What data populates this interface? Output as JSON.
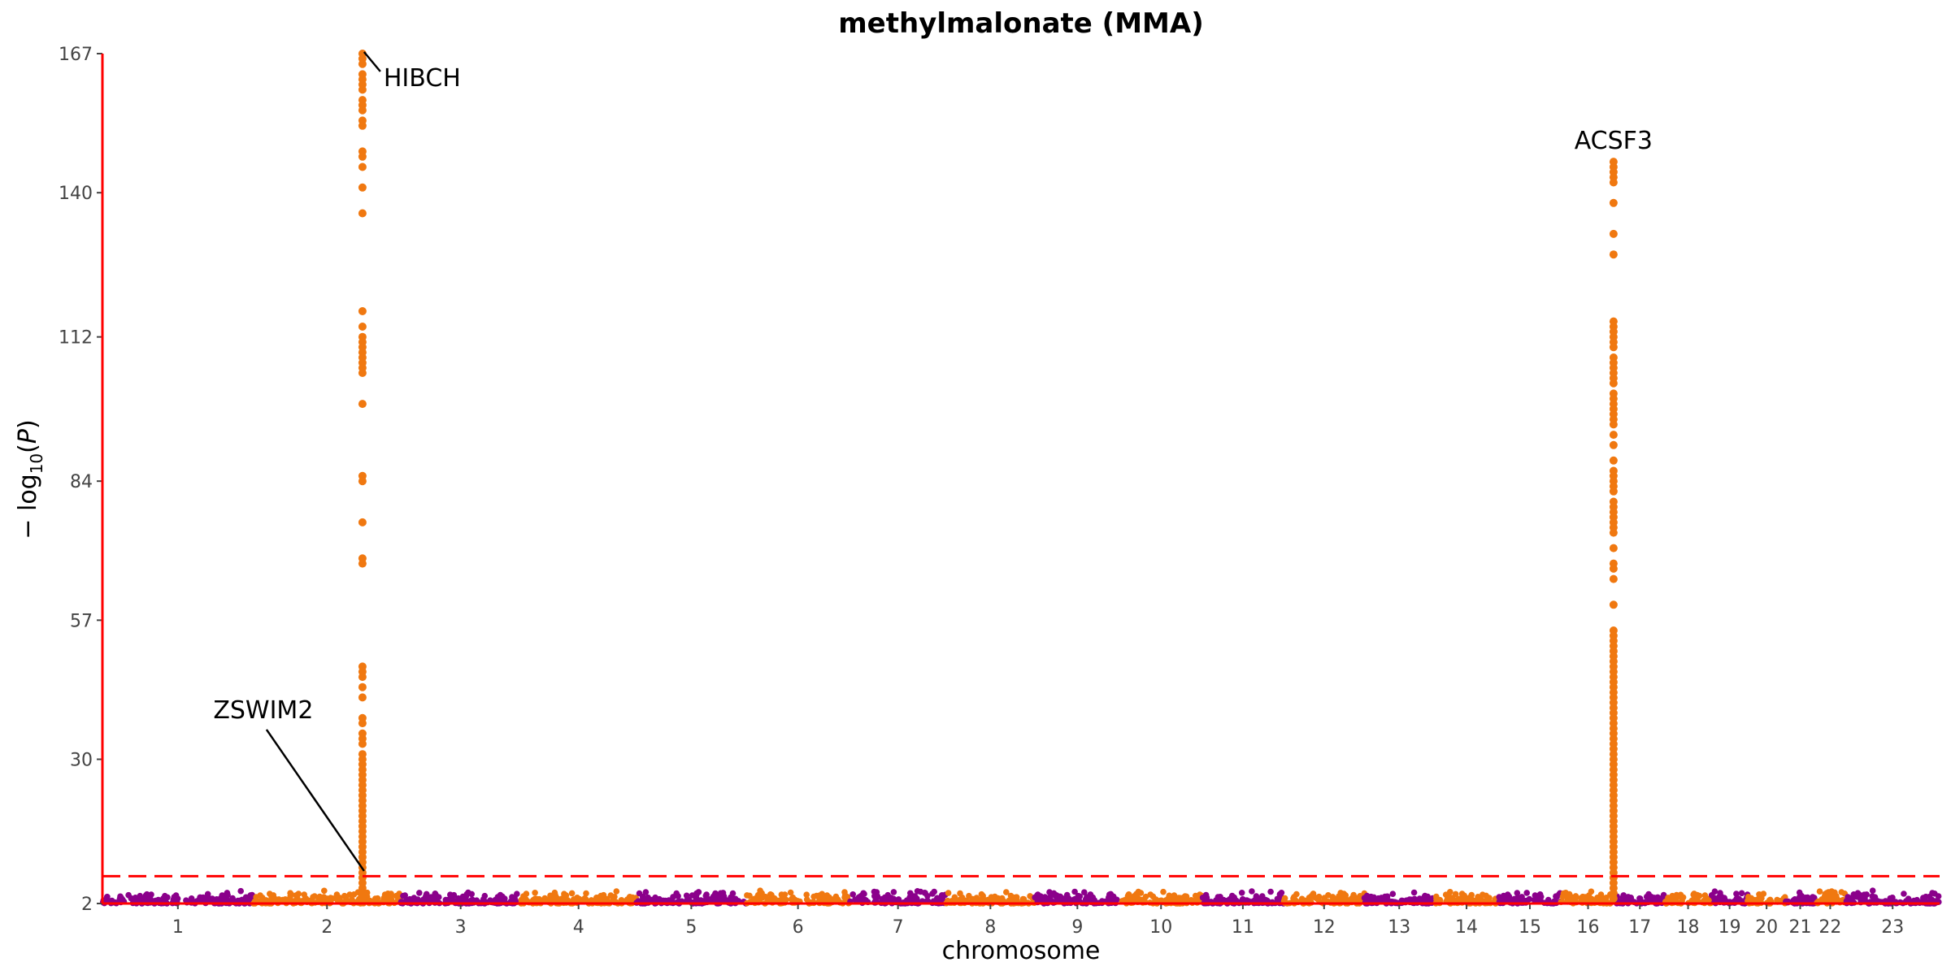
{
  "chart_data": {
    "type": "scatter",
    "title": "methylmalonate (MMA)",
    "xlabel": "chromosome",
    "ylabel": "− log10(P)",
    "ylim": [
      2,
      167
    ],
    "y_ticks": [
      2,
      30,
      57,
      84,
      112,
      140,
      167
    ],
    "significance_threshold": 7.3,
    "colors": {
      "odd": "#8b008b",
      "even": "#f07810",
      "axes": "#ff0000",
      "threshold": "#ff0000"
    },
    "chromosomes": [
      {
        "label": "1",
        "length": 249
      },
      {
        "label": "2",
        "length": 243
      },
      {
        "label": "3",
        "length": 198
      },
      {
        "label": "4",
        "length": 191
      },
      {
        "label": "5",
        "length": 181
      },
      {
        "label": "6",
        "length": 171
      },
      {
        "label": "7",
        "length": 159
      },
      {
        "label": "8",
        "length": 146
      },
      {
        "label": "9",
        "length": 141
      },
      {
        "label": "10",
        "length": 135
      },
      {
        "label": "11",
        "length": 135
      },
      {
        "label": "12",
        "length": 133
      },
      {
        "label": "13",
        "length": 115
      },
      {
        "label": "14",
        "length": 107
      },
      {
        "label": "15",
        "length": 102
      },
      {
        "label": "16",
        "length": 90
      },
      {
        "label": "17",
        "length": 81
      },
      {
        "label": "18",
        "length": 78
      },
      {
        "label": "19",
        "length": 59
      },
      {
        "label": "20",
        "length": 63
      },
      {
        "label": "21",
        "length": 48
      },
      {
        "label": "22",
        "length": 51
      },
      {
        "label": "23",
        "length": 155
      }
    ],
    "peaks": [
      {
        "chr": "2",
        "pos": 180,
        "values": [
          167,
          166,
          165,
          163,
          162,
          161,
          160,
          158,
          157,
          156,
          154,
          153,
          148,
          147,
          145,
          141,
          136,
          117,
          114,
          112,
          111,
          110,
          109,
          108,
          107,
          106,
          105,
          99,
          85,
          84,
          76,
          69,
          68,
          48,
          47,
          46,
          44,
          42,
          38,
          37,
          35,
          34,
          33,
          31,
          30,
          29,
          28,
          27,
          26,
          25,
          24,
          23,
          22,
          21,
          20,
          19,
          18,
          17,
          16,
          15,
          14,
          13,
          12,
          11,
          10,
          9,
          8,
          7,
          6,
          5,
          4,
          3
        ]
      },
      {
        "chr": "16",
        "pos": 87,
        "values": [
          146,
          145,
          144,
          143,
          142,
          138,
          132,
          128,
          115,
          114,
          113,
          112,
          111,
          110,
          108,
          107,
          106,
          105,
          104,
          103,
          101,
          100,
          99,
          98,
          97,
          96,
          95,
          93,
          91,
          88,
          86,
          85,
          84,
          83,
          82,
          80,
          79,
          78,
          77,
          76,
          75,
          74,
          71,
          68,
          67,
          65,
          60,
          55,
          54,
          53,
          52,
          51,
          50,
          49,
          48,
          47,
          46,
          45,
          44,
          43,
          42,
          41,
          40,
          39,
          38,
          37,
          36,
          35,
          34,
          33,
          32,
          31,
          30,
          29,
          28,
          27,
          26,
          25,
          24,
          23,
          22,
          21,
          20,
          19,
          18,
          17,
          16,
          15,
          14,
          13,
          12,
          11,
          10,
          9,
          8,
          7,
          6,
          5,
          4,
          3
        ]
      }
    ],
    "annotations": [
      {
        "label": "HIBCH",
        "chr": "2",
        "pos": 180,
        "y": 167
      },
      {
        "label": "ZSWIM2",
        "chr": "2",
        "pos": 180,
        "y": 8
      },
      {
        "label": "ACSF3",
        "chr": "16",
        "pos": 87,
        "y": 146
      }
    ]
  }
}
